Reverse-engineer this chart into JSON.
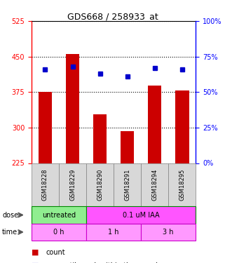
{
  "title": "GDS668 / 258933_at",
  "samples": [
    "GSM18228",
    "GSM18229",
    "GSM18290",
    "GSM18291",
    "GSM18294",
    "GSM18295"
  ],
  "bar_values": [
    375,
    455,
    328,
    293,
    388,
    378
  ],
  "bar_bottom": 225,
  "percentile_values": [
    66,
    68,
    63,
    61,
    67,
    66
  ],
  "ylim_left": [
    225,
    525
  ],
  "ylim_right": [
    0,
    100
  ],
  "yticks_left": [
    225,
    300,
    375,
    450,
    525
  ],
  "yticks_right": [
    0,
    25,
    50,
    75,
    100
  ],
  "bar_color": "#cc0000",
  "dot_color": "#0000cc",
  "dose_groups": [
    {
      "label": "untreated",
      "samples": [
        0,
        1
      ],
      "color": "#90ee90"
    },
    {
      "label": "0.1 uM IAA",
      "samples": [
        2,
        3,
        4,
        5
      ],
      "color": "#ff55ff"
    }
  ],
  "time_groups": [
    {
      "label": "0 h",
      "samples": [
        0,
        1
      ],
      "color": "#ff99ff"
    },
    {
      "label": "1 h",
      "samples": [
        2,
        3
      ],
      "color": "#ff99ff"
    },
    {
      "label": "3 h",
      "samples": [
        4,
        5
      ],
      "color": "#ff99ff"
    }
  ],
  "bg_color": "#d8d8d8"
}
